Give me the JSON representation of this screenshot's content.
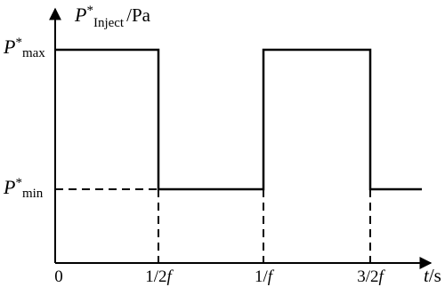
{
  "y_axis_label": {
    "symbol": "P",
    "superscript": "*",
    "subscript": "Inject",
    "unit": "/Pa"
  },
  "levels": {
    "max": {
      "symbol": "P",
      "superscript": "*",
      "subscript": "max"
    },
    "min": {
      "symbol": "P",
      "superscript": "*",
      "subscript": "min"
    }
  },
  "x_labels": [
    {
      "number": "0"
    },
    {
      "number": "1/2",
      "symbol": "f"
    },
    {
      "number": "1/",
      "symbol": "f"
    },
    {
      "number": "3/2",
      "symbol": "f"
    }
  ],
  "x_axis_label": {
    "symbol": "t",
    "unit": "/s"
  }
}
